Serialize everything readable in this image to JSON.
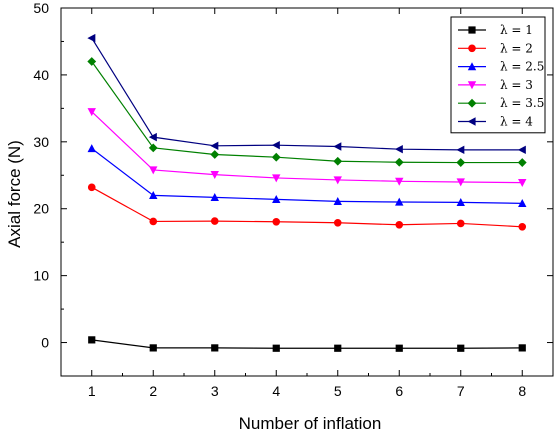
{
  "chart_data": {
    "type": "line",
    "title": "",
    "xlabel": "Number of inflation",
    "ylabel": "Axial force (N)",
    "x": [
      1,
      2,
      3,
      4,
      5,
      6,
      7,
      8
    ],
    "xlim": [
      0.5,
      8.5
    ],
    "ylim": [
      -5,
      50
    ],
    "xticks": [
      1,
      2,
      3,
      4,
      5,
      6,
      7,
      8
    ],
    "yticks": [
      0,
      10,
      20,
      30,
      40,
      50
    ],
    "grid": false,
    "legend_position": "top-right",
    "series": [
      {
        "name": "λ = 1",
        "color": "#000000",
        "marker": "square",
        "values": [
          0.4,
          -0.8,
          -0.8,
          -0.85,
          -0.85,
          -0.85,
          -0.85,
          -0.8
        ]
      },
      {
        "name": "λ = 2",
        "color": "#ff0000",
        "marker": "circle",
        "values": [
          23.2,
          18.1,
          18.15,
          18.05,
          17.9,
          17.6,
          17.8,
          17.3
        ]
      },
      {
        "name": "λ = 2.5",
        "color": "#0000ff",
        "marker": "triangle-up",
        "values": [
          29.0,
          22.0,
          21.7,
          21.4,
          21.1,
          21.0,
          20.95,
          20.8
        ]
      },
      {
        "name": "λ = 3",
        "color": "#ff00ff",
        "marker": "triangle-down",
        "values": [
          34.5,
          25.8,
          25.1,
          24.6,
          24.3,
          24.1,
          24.0,
          23.9
        ]
      },
      {
        "name": "λ = 3.5",
        "color": "#008000",
        "marker": "diamond",
        "values": [
          42.0,
          29.1,
          28.1,
          27.7,
          27.1,
          26.95,
          26.9,
          26.9
        ]
      },
      {
        "name": "λ = 4",
        "color": "#000080",
        "marker": "triangle-left",
        "values": [
          45.5,
          30.7,
          29.4,
          29.5,
          29.3,
          28.9,
          28.8,
          28.8
        ]
      }
    ]
  }
}
